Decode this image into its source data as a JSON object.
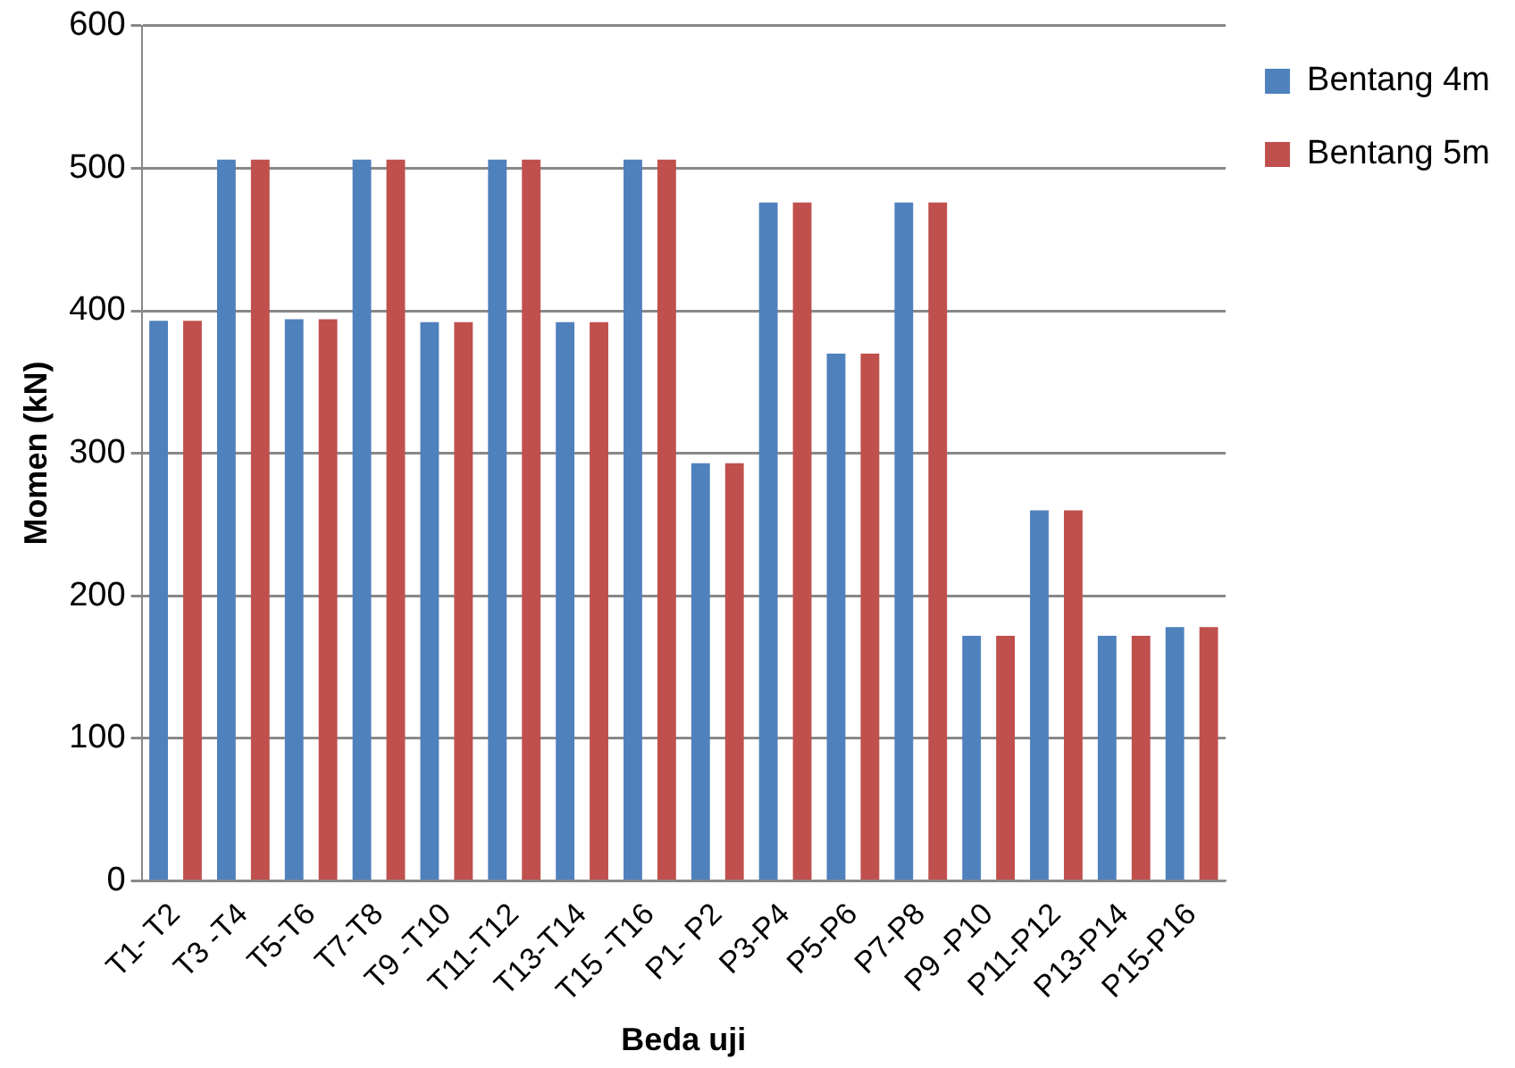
{
  "chart_data": {
    "type": "bar",
    "xlabel": "Beda uji",
    "ylabel": "Momen (kN)",
    "categories": [
      "T1- T2",
      "T3 -T4",
      "T5-T6",
      "T7-T8",
      "T9 -T10",
      "T11-T12",
      "T13-T14",
      "T15 -T16",
      "P1- P2",
      "P3-P4",
      "P5-P6",
      "P7-P8",
      "P9 -P10",
      "P11-P12",
      "P13-P14",
      "P15-P16"
    ],
    "series": [
      {
        "name": "Bentang 4m",
        "color": "#4f81bd",
        "values": [
          393,
          506,
          394,
          506,
          392,
          506,
          392,
          506,
          293,
          476,
          370,
          476,
          172,
          260,
          172,
          178
        ]
      },
      {
        "name": "Bentang 5m",
        "color": "#c0504d",
        "values": [
          393,
          506,
          394,
          506,
          392,
          506,
          392,
          506,
          293,
          476,
          370,
          476,
          172,
          260,
          172,
          178
        ]
      }
    ],
    "ylim": [
      0,
      600
    ],
    "yticks": [
      0,
      100,
      200,
      300,
      400,
      500,
      600
    ],
    "grid": "y",
    "legend": "top right"
  }
}
